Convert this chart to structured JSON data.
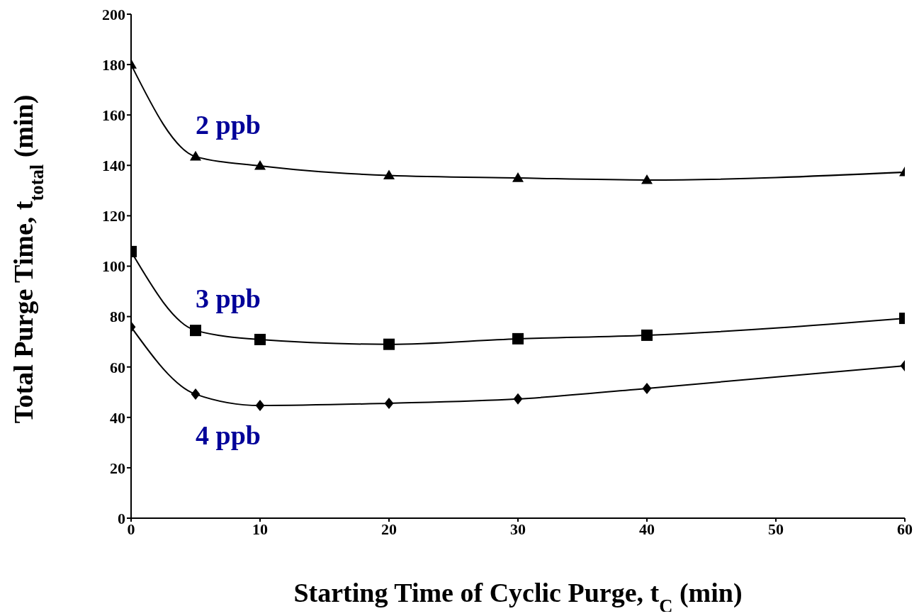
{
  "chart_data": {
    "type": "line",
    "xlabel": "Starting Time of Cyclic Purge, t$_{C}$ (min)",
    "ylabel": "Total Purge Time, t$_{total}$ (min)",
    "xlim": [
      0,
      60
    ],
    "xticks": [
      0,
      10,
      20,
      30,
      40,
      50,
      60
    ],
    "ylim": [
      0,
      200
    ],
    "yticks": [
      0,
      20,
      40,
      60,
      80,
      100,
      120,
      140,
      160,
      180,
      200
    ],
    "grid": false,
    "line_style": "solid",
    "x": [
      0,
      5,
      10,
      20,
      30,
      40,
      60
    ],
    "series": [
      {
        "name": "2 ppb",
        "color": "#000000",
        "marker": "triangle",
        "values": [
          180,
          143.5,
          139.8,
          136,
          135,
          134.2,
          137.3
        ]
      },
      {
        "name": "3 ppb",
        "color": "#000000",
        "marker": "square",
        "values": [
          105.8,
          74.5,
          70.9,
          69,
          71.2,
          72.6,
          79.3
        ]
      },
      {
        "name": "4 ppb",
        "color": "#000000",
        "marker": "diamond",
        "values": [
          75.9,
          49.2,
          44.7,
          45.6,
          47.3,
          51.5,
          60.5
        ]
      }
    ]
  }
}
